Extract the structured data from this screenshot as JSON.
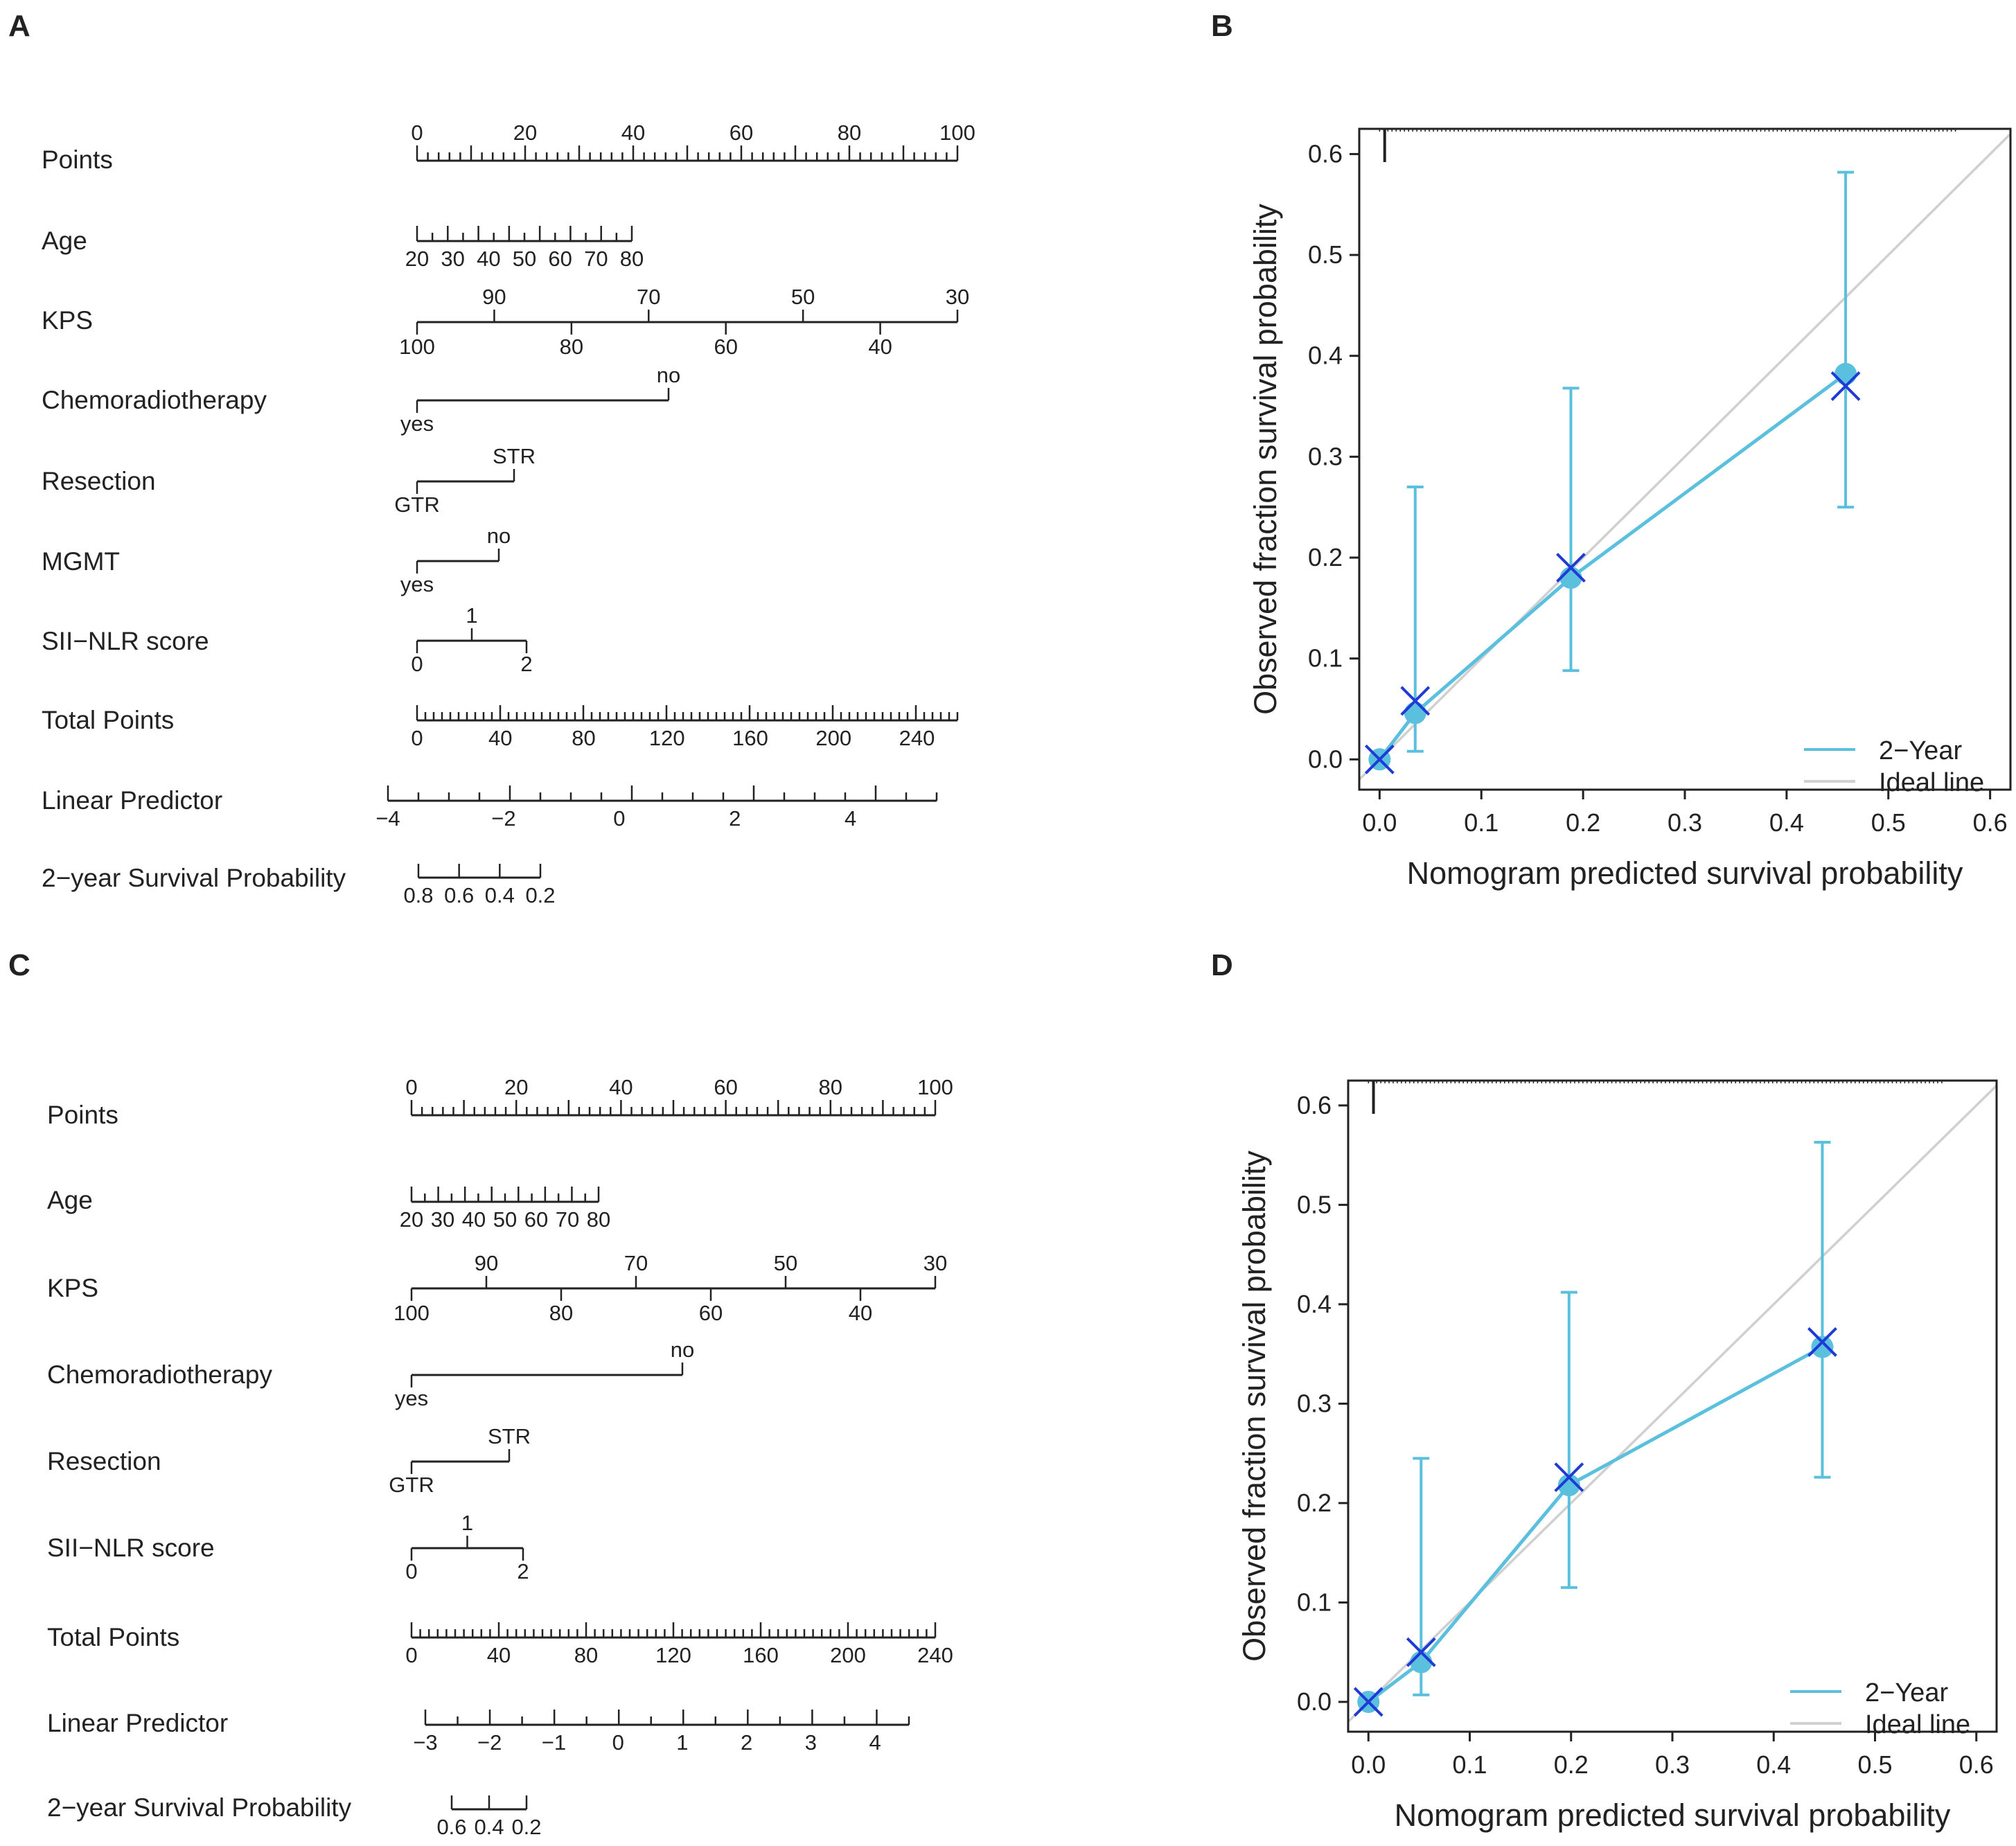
{
  "panel_letters": [
    "A",
    "B",
    "C",
    "D"
  ],
  "chart_data": [
    {
      "type": "table",
      "panel": "A",
      "rows": [
        {
          "label": "Points",
          "kind": "scale",
          "ticks": [
            "0",
            "20",
            "40",
            "60",
            "80",
            "100"
          ]
        },
        {
          "label": "Age",
          "kind": "scale",
          "ticks": [
            "20",
            "30",
            "40",
            "50",
            "60",
            "70",
            "80"
          ]
        },
        {
          "label": "KPS",
          "kind": "scale",
          "ticks_top": [
            "90",
            "70",
            "50",
            "30"
          ],
          "ticks_bottom": [
            "100",
            "80",
            "60",
            "40"
          ]
        },
        {
          "label": "Chemoradiotherapy",
          "kind": "categorical",
          "levels": [
            "yes",
            "no"
          ],
          "points": [
            0,
            46
          ]
        },
        {
          "label": "Resection",
          "kind": "categorical",
          "levels": [
            "GTR",
            "STR"
          ],
          "points": [
            0,
            18
          ]
        },
        {
          "label": "MGMT",
          "kind": "categorical",
          "levels": [
            "yes",
            "no"
          ],
          "points": [
            0,
            15
          ]
        },
        {
          "label": "SII−NLR score",
          "kind": "categorical",
          "levels": [
            "0",
            "1",
            "2"
          ],
          "points": [
            0,
            10,
            20
          ]
        },
        {
          "label": "Total Points",
          "kind": "scale",
          "ticks": [
            "0",
            "40",
            "80",
            "120",
            "160",
            "200",
            "240"
          ]
        },
        {
          "label": "Linear Predictor",
          "kind": "scale",
          "ticks": [
            "−4",
            "−2",
            "0",
            "2",
            "4"
          ]
        },
        {
          "label": "2−year Survival Probability",
          "kind": "scale",
          "ticks": [
            "0.8",
            "0.6",
            "0.4",
            "0.2"
          ]
        }
      ]
    },
    {
      "type": "line",
      "panel": "B",
      "xlabel": "Nomogram predicted survival probability",
      "ylabel": "Observed fraction survival probability",
      "xlim": [
        -0.02,
        0.62
      ],
      "ylim": [
        -0.03,
        0.625
      ],
      "xticks": [
        "0.0",
        "0.1",
        "0.2",
        "0.3",
        "0.4",
        "0.5",
        "0.6"
      ],
      "yticks": [
        "0.0",
        "0.1",
        "0.2",
        "0.3",
        "0.4",
        "0.5",
        "0.6"
      ],
      "legend_position": "bottom-right",
      "series": [
        {
          "name": "2−Year",
          "color": "#5bc0de",
          "x": [
            0.0,
            0.035,
            0.188,
            0.458
          ],
          "y": [
            0.0,
            0.046,
            0.18,
            0.382
          ],
          "ci_lower": [
            0.0,
            0.008,
            0.088,
            0.25
          ],
          "ci_upper": [
            0.0,
            0.27,
            0.368,
            0.582
          ],
          "cross_y": [
            0.0,
            0.058,
            0.19,
            0.37
          ]
        },
        {
          "name": "Ideal line",
          "color": "#d0d0d0",
          "x": [
            -0.02,
            0.62
          ],
          "y": [
            -0.02,
            0.62
          ]
        }
      ]
    },
    {
      "type": "table",
      "panel": "C",
      "rows": [
        {
          "label": "Points",
          "kind": "scale",
          "ticks": [
            "0",
            "20",
            "40",
            "60",
            "80",
            "100"
          ]
        },
        {
          "label": "Age",
          "kind": "scale",
          "ticks": [
            "20",
            "30",
            "40",
            "50",
            "60",
            "70",
            "80"
          ]
        },
        {
          "label": "KPS",
          "kind": "scale",
          "ticks_top": [
            "90",
            "70",
            "50",
            "30"
          ],
          "ticks_bottom": [
            "100",
            "80",
            "60",
            "40"
          ]
        },
        {
          "label": "Chemoradiotherapy",
          "kind": "categorical",
          "levels": [
            "yes",
            "no"
          ],
          "points": [
            0,
            52
          ]
        },
        {
          "label": "Resection",
          "kind": "categorical",
          "levels": [
            "GTR",
            "STR"
          ],
          "points": [
            0,
            18
          ]
        },
        {
          "label": "SII−NLR score",
          "kind": "categorical",
          "levels": [
            "0",
            "1",
            "2"
          ],
          "points": [
            0,
            10.5,
            21
          ]
        },
        {
          "label": "Total Points",
          "kind": "scale",
          "ticks": [
            "0",
            "40",
            "80",
            "120",
            "160",
            "200",
            "240"
          ]
        },
        {
          "label": "Linear Predictor",
          "kind": "scale",
          "ticks": [
            "−3",
            "−2",
            "−1",
            "0",
            "1",
            "2",
            "3",
            "4"
          ]
        },
        {
          "label": "2−year Survival Probability",
          "kind": "scale",
          "ticks": [
            "0.6",
            "0.4",
            "0.2"
          ]
        }
      ]
    },
    {
      "type": "line",
      "panel": "D",
      "xlabel": "Nomogram predicted survival probability",
      "ylabel": "Observed fraction survival probability",
      "xlim": [
        -0.02,
        0.62
      ],
      "ylim": [
        -0.03,
        0.625
      ],
      "xticks": [
        "0.0",
        "0.1",
        "0.2",
        "0.3",
        "0.4",
        "0.5",
        "0.6"
      ],
      "yticks": [
        "0.0",
        "0.1",
        "0.2",
        "0.3",
        "0.4",
        "0.5",
        "0.6"
      ],
      "legend_position": "bottom-right",
      "series": [
        {
          "name": "2−Year",
          "color": "#5bc0de",
          "x": [
            0.0,
            0.052,
            0.198,
            0.448
          ],
          "y": [
            0.0,
            0.04,
            0.218,
            0.357
          ],
          "ci_lower": [
            0.0,
            0.007,
            0.115,
            0.226
          ],
          "ci_upper": [
            0.0,
            0.245,
            0.412,
            0.563
          ],
          "cross_y": [
            0.0,
            0.05,
            0.226,
            0.362
          ]
        },
        {
          "name": "Ideal line",
          "color": "#d0d0d0",
          "x": [
            -0.02,
            0.62
          ],
          "y": [
            -0.02,
            0.62
          ]
        }
      ]
    }
  ]
}
